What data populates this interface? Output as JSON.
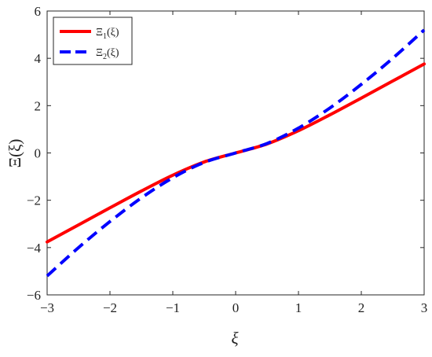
{
  "chart_data": {
    "type": "line",
    "title": "",
    "xlabel": "ξ",
    "ylabel": "Ξ(ξ)",
    "xlim": [
      -3,
      3
    ],
    "ylim": [
      -6,
      6
    ],
    "xticks": [
      -3,
      -2,
      -1,
      0,
      1,
      2,
      3
    ],
    "yticks": [
      -6,
      -4,
      -2,
      0,
      2,
      4,
      6
    ],
    "xtick_labels": [
      "−3",
      "−2",
      "−1",
      "0",
      "1",
      "2",
      "3"
    ],
    "ytick_labels": [
      "−6",
      "−4",
      "−2",
      "0",
      "2",
      "4",
      "6"
    ],
    "grid": false,
    "legend_position": "top-left",
    "series": [
      {
        "name": "Ξ1(ξ)",
        "legend_main": "Ξ",
        "legend_sub": "1",
        "legend_tail": "(ξ)",
        "color": "#ff0000",
        "style": "solid",
        "x": [
          -3,
          -2.5,
          -2,
          -1.5,
          -1,
          -0.5,
          0,
          0.5,
          1,
          1.5,
          2,
          2.5,
          3
        ],
        "y": [
          -3.76,
          -3.04,
          -2.32,
          -1.61,
          -0.94,
          -0.38,
          0,
          0.38,
          0.94,
          1.61,
          2.32,
          3.04,
          3.76
        ]
      },
      {
        "name": "Ξ2(ξ)",
        "legend_main": "Ξ",
        "legend_sub": "2",
        "legend_tail": "(ξ)",
        "color": "#0000ff",
        "style": "dashed",
        "x": [
          -3,
          -2.5,
          -2,
          -1.5,
          -1,
          -0.5,
          0,
          0.5,
          1,
          1.5,
          2,
          2.5,
          3
        ],
        "y": [
          -5.2,
          -4.0,
          -2.9,
          -1.9,
          -1.05,
          -0.4,
          0,
          0.4,
          1.05,
          1.9,
          2.9,
          4.0,
          5.2
        ]
      }
    ]
  }
}
